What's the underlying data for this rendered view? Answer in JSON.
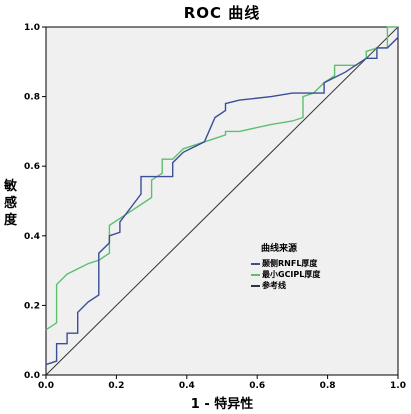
{
  "chart_data": {
    "type": "line",
    "title": "ROC 曲线",
    "xlabel": "1 - 特异性",
    "ylabel": "敏感度",
    "xlim": [
      0,
      1
    ],
    "ylim": [
      0,
      1
    ],
    "x_ticks": [
      "0.0",
      "0.2",
      "0.4",
      "0.6",
      "0.8",
      "1.0"
    ],
    "y_ticks": [
      "0.0",
      "0.2",
      "0.4",
      "0.6",
      "0.8",
      "1.0"
    ],
    "grid": false,
    "background_color": "#f0f0f0",
    "legend": {
      "title": "曲线来源",
      "placement": "center-right inside plot"
    },
    "series": [
      {
        "name": "颞侧RNFL厚度",
        "color": "#3b4e96",
        "points": [
          [
            0.0,
            0.03
          ],
          [
            0.03,
            0.04
          ],
          [
            0.03,
            0.09
          ],
          [
            0.06,
            0.09
          ],
          [
            0.06,
            0.12
          ],
          [
            0.09,
            0.12
          ],
          [
            0.09,
            0.18
          ],
          [
            0.12,
            0.21
          ],
          [
            0.15,
            0.23
          ],
          [
            0.15,
            0.35
          ],
          [
            0.18,
            0.38
          ],
          [
            0.18,
            0.4
          ],
          [
            0.21,
            0.41
          ],
          [
            0.21,
            0.44
          ],
          [
            0.24,
            0.48
          ],
          [
            0.27,
            0.52
          ],
          [
            0.27,
            0.57
          ],
          [
            0.33,
            0.57
          ],
          [
            0.36,
            0.57
          ],
          [
            0.36,
            0.61
          ],
          [
            0.39,
            0.64
          ],
          [
            0.45,
            0.67
          ],
          [
            0.48,
            0.74
          ],
          [
            0.51,
            0.76
          ],
          [
            0.51,
            0.78
          ],
          [
            0.55,
            0.79
          ],
          [
            0.64,
            0.8
          ],
          [
            0.7,
            0.81
          ],
          [
            0.79,
            0.81
          ],
          [
            0.79,
            0.84
          ],
          [
            0.85,
            0.87
          ],
          [
            0.91,
            0.91
          ],
          [
            0.94,
            0.91
          ],
          [
            0.94,
            0.94
          ],
          [
            0.97,
            0.94
          ],
          [
            1.0,
            0.97
          ],
          [
            1.0,
            1.0
          ]
        ]
      },
      {
        "name": "最小GCIPL厚度",
        "color": "#5cc06e",
        "points": [
          [
            0.0,
            0.13
          ],
          [
            0.03,
            0.15
          ],
          [
            0.03,
            0.26
          ],
          [
            0.06,
            0.29
          ],
          [
            0.12,
            0.32
          ],
          [
            0.15,
            0.33
          ],
          [
            0.18,
            0.35
          ],
          [
            0.18,
            0.43
          ],
          [
            0.21,
            0.45
          ],
          [
            0.24,
            0.47
          ],
          [
            0.27,
            0.49
          ],
          [
            0.3,
            0.51
          ],
          [
            0.3,
            0.56
          ],
          [
            0.33,
            0.58
          ],
          [
            0.33,
            0.62
          ],
          [
            0.36,
            0.62
          ],
          [
            0.39,
            0.65
          ],
          [
            0.48,
            0.68
          ],
          [
            0.51,
            0.69
          ],
          [
            0.51,
            0.7
          ],
          [
            0.55,
            0.7
          ],
          [
            0.64,
            0.72
          ],
          [
            0.7,
            0.73
          ],
          [
            0.73,
            0.74
          ],
          [
            0.73,
            0.8
          ],
          [
            0.76,
            0.81
          ],
          [
            0.79,
            0.84
          ],
          [
            0.82,
            0.86
          ],
          [
            0.82,
            0.89
          ],
          [
            0.88,
            0.89
          ],
          [
            0.91,
            0.91
          ],
          [
            0.91,
            0.93
          ],
          [
            0.94,
            0.94
          ],
          [
            0.97,
            0.94
          ],
          [
            0.97,
            1.0
          ],
          [
            1.0,
            1.0
          ]
        ]
      },
      {
        "name": "参考线",
        "color": "#333333",
        "points": [
          [
            0,
            0
          ],
          [
            1,
            1
          ]
        ]
      }
    ]
  }
}
